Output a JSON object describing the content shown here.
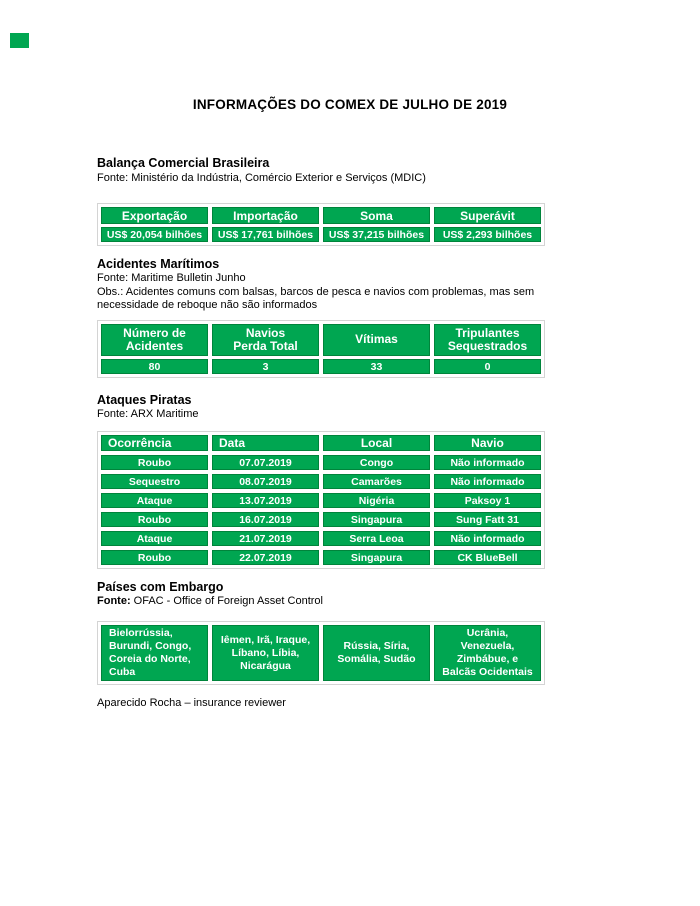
{
  "title": "INFORMAÇÕES DO COMEX DE JULHO DE 2019",
  "colors": {
    "cell_green": "#00A651",
    "cell_border_green": "#00843B",
    "table_outline_gray": "#D4D4D4",
    "cell_text": "#FFFFFF"
  },
  "sections": {
    "balanca": {
      "heading": "Balança Comercial Brasileira",
      "source": "Fonte: Ministério da Indústria, Comércio Exterior e Serviços (MDIC)",
      "headers": [
        "Exportação",
        "Importação",
        "Soma",
        "Superávit"
      ],
      "values": [
        "US$ 20,054 bilhões",
        "US$ 17,761 bilhões",
        "US$ 37,215 bilhões",
        "US$ 2,293 bilhões"
      ]
    },
    "acidentes": {
      "heading": "Acidentes Marítimos",
      "source": "Fonte: Maritime Bulletin Junho",
      "note_line1": "Obs.: Acidentes comuns com balsas, barcos de pesca e navios com problemas, mas sem",
      "note_line2": "necessidade de reboque não são informados",
      "headers": [
        "Número de\nAcidentes",
        "Navios\nPerda Total",
        "Vítimas",
        "Tripulantes\nSequestrados"
      ],
      "values": [
        "80",
        "3",
        "33",
        "0"
      ]
    },
    "piratas": {
      "heading": "Ataques Piratas",
      "source": "Fonte: ARX Maritime",
      "headers": [
        "Ocorrência",
        "Data",
        "Local",
        "Navio"
      ],
      "rows": [
        [
          "Roubo",
          "07.07.2019",
          "Congo",
          "Não informado"
        ],
        [
          "Sequestro",
          "08.07.2019",
          "Camarões",
          "Não informado"
        ],
        [
          "Ataque",
          "13.07.2019",
          "Nigéria",
          "Paksoy 1"
        ],
        [
          "Roubo",
          "16.07.2019",
          "Singapura",
          "Sung Fatt 31"
        ],
        [
          "Ataque",
          "21.07.2019",
          "Serra Leoa",
          "Não informado"
        ],
        [
          "Roubo",
          "22.07.2019",
          "Singapura",
          "CK BlueBell"
        ]
      ]
    },
    "embargo": {
      "heading": "Países com Embargo",
      "source_label": "Fonte:",
      "source_text": " OFAC - Office of Foreign Asset Control",
      "cells": [
        "Bielorrússia, Burundi, Congo, Coreia do Norte, Cuba",
        "Iêmen, Irã, Iraque, Líbano, Líbia, Nicarágua",
        "Rússia, Síria, Somália, Sudão",
        "Ucrânia, Venezuela, Zimbábue, e Balcãs Ocidentais"
      ]
    }
  },
  "footer": "Aparecido Rocha – insurance reviewer"
}
